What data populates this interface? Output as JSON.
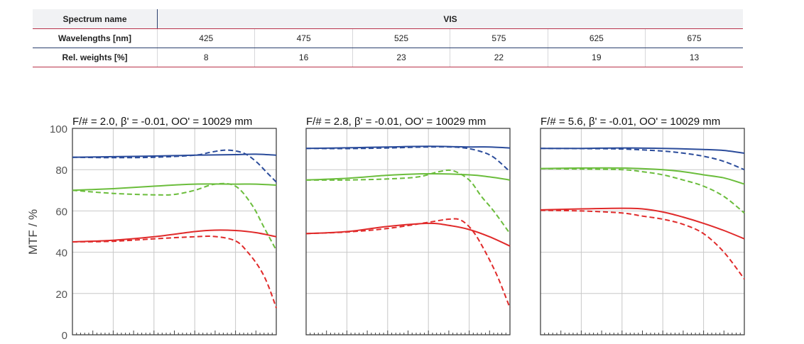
{
  "table": {
    "spectrum_label": "Spectrum name",
    "spectrum_value": "VIS",
    "wavelengths_label": "Wavelengths [nm]",
    "wavelengths": [
      "425",
      "475",
      "525",
      "575",
      "625",
      "675"
    ],
    "weights_label": "Rel. weights [%]",
    "weights": [
      "8",
      "16",
      "23",
      "22",
      "19",
      "13"
    ]
  },
  "y_axis_label": "MTF / %",
  "y_ticks": [
    "100",
    "80",
    "60",
    "40",
    "20",
    "0"
  ],
  "colors": {
    "blue": "#2b4c9b",
    "green": "#6bbd3c",
    "red": "#e02a2a",
    "grid": "#c8c8c8"
  },
  "chart_data": [
    {
      "type": "line",
      "title": "F/# = 2.0, β' = -0.01, OO' = 10029 mm",
      "xlim": [
        0,
        1
      ],
      "ylim": [
        0,
        100
      ],
      "grid": true,
      "series": [
        {
          "color": "blue",
          "style": "solid",
          "x": [
            0,
            0.2,
            0.4,
            0.6,
            0.8,
            0.9,
            1.0
          ],
          "y": [
            86,
            86.3,
            86.6,
            87,
            87.3,
            87.5,
            87
          ]
        },
        {
          "color": "blue",
          "style": "dashed",
          "x": [
            0,
            0.2,
            0.4,
            0.6,
            0.68,
            0.76,
            0.84,
            0.9,
            0.95,
            1.0
          ],
          "y": [
            86,
            85.8,
            86,
            87,
            88.5,
            89.5,
            88,
            84,
            79,
            74
          ]
        },
        {
          "color": "green",
          "style": "solid",
          "x": [
            0,
            0.2,
            0.4,
            0.6,
            0.8,
            0.9,
            1.0
          ],
          "y": [
            70,
            70.8,
            72,
            73,
            73,
            73,
            72.5
          ]
        },
        {
          "color": "green",
          "style": "dashed",
          "x": [
            0,
            0.2,
            0.4,
            0.5,
            0.6,
            0.7,
            0.8,
            0.88,
            0.94,
            1.0
          ],
          "y": [
            70,
            68.5,
            67.8,
            68,
            70,
            73,
            72,
            63,
            52,
            41
          ]
        },
        {
          "color": "red",
          "style": "solid",
          "x": [
            0,
            0.2,
            0.4,
            0.6,
            0.7,
            0.8,
            0.9,
            1.0
          ],
          "y": [
            45,
            45.8,
            47.5,
            50,
            50.7,
            50.5,
            49.5,
            47.5
          ]
        },
        {
          "color": "red",
          "style": "dashed",
          "x": [
            0,
            0.2,
            0.4,
            0.6,
            0.7,
            0.8,
            0.86,
            0.92,
            0.96,
            1.0
          ],
          "y": [
            45,
            45.3,
            46.5,
            47.5,
            47.6,
            45.5,
            40,
            32,
            24,
            13
          ]
        }
      ]
    },
    {
      "type": "line",
      "title": "F/# = 2.8, β' = -0.01, OO' = 10029 mm",
      "xlim": [
        0,
        1
      ],
      "ylim": [
        0,
        100
      ],
      "grid": true,
      "series": [
        {
          "color": "blue",
          "style": "solid",
          "x": [
            0,
            0.2,
            0.4,
            0.6,
            0.8,
            0.9,
            1.0
          ],
          "y": [
            90.3,
            90.6,
            91,
            91.3,
            91,
            91,
            90.5
          ]
        },
        {
          "color": "blue",
          "style": "dashed",
          "x": [
            0,
            0.2,
            0.4,
            0.6,
            0.75,
            0.85,
            0.92,
            1.0
          ],
          "y": [
            90.3,
            90.2,
            90.5,
            91,
            90.8,
            89,
            86,
            79
          ]
        },
        {
          "color": "green",
          "style": "solid",
          "x": [
            0,
            0.2,
            0.4,
            0.6,
            0.8,
            0.9,
            1.0
          ],
          "y": [
            75,
            75.8,
            77.3,
            78,
            77.5,
            76.5,
            75
          ]
        },
        {
          "color": "green",
          "style": "dashed",
          "x": [
            0,
            0.2,
            0.4,
            0.55,
            0.65,
            0.72,
            0.8,
            0.86,
            0.92,
            1.0
          ],
          "y": [
            75,
            75,
            75.5,
            76.5,
            79,
            79.5,
            75,
            67,
            60,
            49
          ]
        },
        {
          "color": "red",
          "style": "solid",
          "x": [
            0,
            0.2,
            0.4,
            0.6,
            0.7,
            0.8,
            0.9,
            1.0
          ],
          "y": [
            49,
            50,
            52.5,
            54,
            53,
            51,
            47.5,
            43
          ]
        },
        {
          "color": "red",
          "style": "dashed",
          "x": [
            0,
            0.2,
            0.4,
            0.6,
            0.7,
            0.76,
            0.82,
            0.88,
            0.94,
            1.0
          ],
          "y": [
            49,
            49.8,
            51.5,
            54.5,
            56,
            55.5,
            50,
            40,
            28,
            13
          ]
        }
      ]
    },
    {
      "type": "line",
      "title": "F/# = 5.6, β' = -0.01, OO' = 10029 mm",
      "xlim": [
        0,
        1
      ],
      "ylim": [
        0,
        100
      ],
      "grid": true,
      "series": [
        {
          "color": "blue",
          "style": "solid",
          "x": [
            0,
            0.2,
            0.4,
            0.6,
            0.8,
            0.9,
            1.0
          ],
          "y": [
            90.3,
            90.3,
            90.5,
            90.3,
            89.8,
            89.3,
            88
          ]
        },
        {
          "color": "blue",
          "style": "dashed",
          "x": [
            0,
            0.2,
            0.4,
            0.6,
            0.7,
            0.8,
            0.9,
            1.0
          ],
          "y": [
            90.3,
            90.2,
            90,
            89,
            88,
            86.5,
            84,
            80
          ]
        },
        {
          "color": "green",
          "style": "solid",
          "x": [
            0,
            0.2,
            0.4,
            0.6,
            0.7,
            0.8,
            0.9,
            1.0
          ],
          "y": [
            80.5,
            80.8,
            80.8,
            80,
            79,
            77.5,
            76,
            73
          ]
        },
        {
          "color": "green",
          "style": "dashed",
          "x": [
            0,
            0.2,
            0.4,
            0.5,
            0.6,
            0.7,
            0.8,
            0.9,
            1.0
          ],
          "y": [
            80.5,
            80.3,
            80,
            79,
            77.5,
            75,
            72,
            67,
            59
          ]
        },
        {
          "color": "red",
          "style": "solid",
          "x": [
            0,
            0.2,
            0.4,
            0.5,
            0.6,
            0.7,
            0.8,
            0.9,
            1.0
          ],
          "y": [
            60.5,
            61,
            61.3,
            61,
            59.5,
            57,
            54,
            50.5,
            46.5
          ]
        },
        {
          "color": "red",
          "style": "dashed",
          "x": [
            0,
            0.2,
            0.4,
            0.5,
            0.6,
            0.7,
            0.8,
            0.9,
            1.0
          ],
          "y": [
            60.3,
            60,
            59,
            57.5,
            56,
            53.5,
            49,
            40,
            27
          ]
        }
      ]
    }
  ]
}
